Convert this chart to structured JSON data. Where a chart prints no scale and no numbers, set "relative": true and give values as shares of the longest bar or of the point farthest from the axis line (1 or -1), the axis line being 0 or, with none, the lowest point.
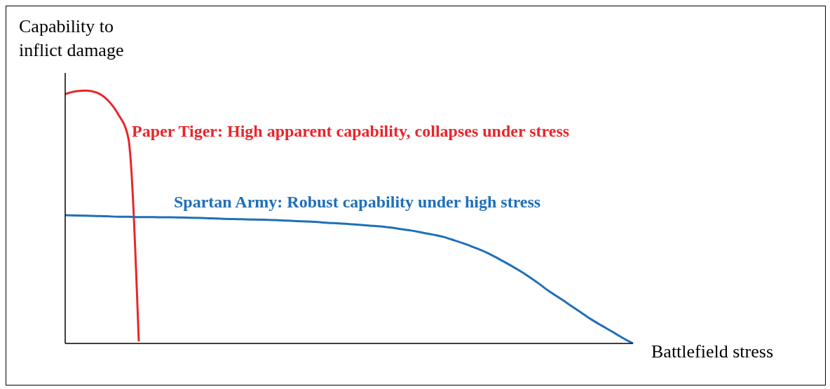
{
  "chart_data": {
    "type": "line",
    "relative": true,
    "ylabel": "Capability to\ninflict damage",
    "xlabel": "Battlefield stress",
    "categories": [
      null,
      null,
      null,
      null,
      null,
      null,
      null,
      null,
      null,
      null,
      null,
      null,
      null,
      null,
      null,
      null,
      null,
      null,
      null,
      null,
      null,
      null,
      null,
      null,
      null,
      null,
      null,
      null,
      null,
      null,
      null,
      null,
      null,
      null,
      null,
      null,
      null,
      null,
      null,
      null,
      null,
      null,
      null,
      null,
      null,
      null,
      null,
      null,
      null,
      null,
      null,
      null,
      null,
      null,
      null
    ],
    "series": [
      {
        "name": "Paper Tiger: High apparent capability, collapses under stress",
        "color": "#e8262b",
        "values": [
          0.986,
          0.997,
          1,
          0.992,
          0.964,
          0.909,
          0.813,
          0.008,
          null,
          null,
          null,
          null,
          null,
          null,
          null,
          null,
          null,
          null,
          null,
          null,
          null,
          null,
          null,
          null,
          null,
          null,
          null,
          null,
          null,
          null,
          null,
          null,
          null,
          null,
          null,
          null,
          null,
          null,
          null,
          null,
          null,
          null,
          null,
          null,
          null,
          null,
          null,
          null,
          null,
          null,
          null,
          null,
          null,
          null,
          null
        ]
      },
      {
        "name": "Spartan Army: Robust capability under high stress",
        "color": "#1f6fb8",
        "values": [
          0.507,
          0.506,
          0.505,
          0.504,
          0.503,
          0.501,
          0.501,
          0.5,
          0.5,
          0.499,
          0.499,
          0.498,
          0.497,
          0.496,
          0.495,
          0.493,
          0.492,
          0.491,
          0.49,
          0.489,
          0.488,
          0.486,
          0.484,
          0.482,
          0.48,
          0.477,
          0.475,
          0.472,
          0.469,
          0.466,
          0.463,
          0.458,
          0.452,
          0.446,
          0.438,
          0.43,
          0.421,
          0.408,
          0.394,
          0.378,
          0.361,
          0.34,
          0.317,
          0.293,
          0.267,
          0.238,
          0.207,
          0.18,
          0.152,
          0.124,
          0.096,
          0.071,
          0.047,
          0.022,
          0
        ]
      }
    ],
    "legend": false,
    "grid": false,
    "marker": "none",
    "line_style": "solid"
  }
}
